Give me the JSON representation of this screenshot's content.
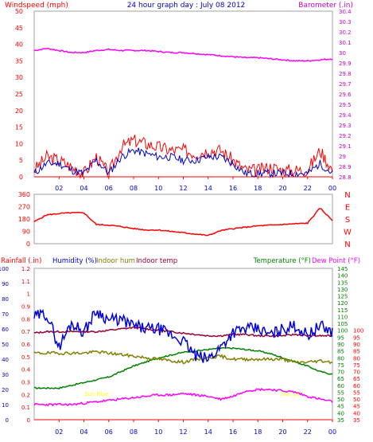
{
  "title": "24 hour graph day : July 08 2012",
  "colors": {
    "wind": "#ff0000",
    "gust": "#0000cc",
    "barometer": "#ff00ff",
    "winddir": "#ff0000",
    "rain": "#ff0000",
    "humidity": "#0000dd",
    "indoor_hum": "#808000",
    "indoor_temp": "#990033",
    "temperature": "#008000",
    "dewpoint": "#ff00ff",
    "frame": "#a0a0a0",
    "axis_blue": "#0000cc",
    "axis_green": "#008000",
    "axis_red": "#ff0000",
    "axis_magenta": "#cc00cc",
    "annotation": "#ffff00"
  },
  "x_tick_labels": [
    "02",
    "04",
    "06",
    "08",
    "10",
    "12",
    "14",
    "16",
    "18",
    "20",
    "22",
    "00"
  ],
  "chart_data": [
    {
      "type": "line",
      "title": "Windspeed / Barometer",
      "ylabel_left": "Windspeed (mph)",
      "ylabel_right": "Barometer (.in)",
      "ylim": [
        0,
        50
      ],
      "yticks": [
        "0",
        "5",
        "10",
        "15",
        "20",
        "25",
        "30",
        "35",
        "40",
        "45",
        "50"
      ],
      "y2lim": [
        28.8,
        30.4
      ],
      "y2ticks": [
        "28.8",
        "28.9",
        "29",
        "29.1",
        "29.2",
        "29.3",
        "29.4",
        "29.5",
        "29.6",
        "29.7",
        "29.8",
        "29.9",
        "30",
        "30.1",
        "30.2",
        "30.3",
        "30.4"
      ],
      "x": [
        0,
        1,
        2,
        3,
        4,
        5,
        6,
        7,
        8,
        9,
        10,
        11,
        12,
        13,
        14,
        15,
        16,
        17,
        18,
        19,
        20,
        21,
        22,
        23,
        24
      ],
      "series": [
        {
          "name": "Windspeed",
          "values": [
            2,
            6,
            5,
            3,
            1,
            6,
            1,
            9,
            11,
            10,
            9,
            8,
            8,
            7,
            8,
            8,
            5,
            2,
            2,
            3,
            2,
            2,
            2,
            8,
            2
          ]
        },
        {
          "name": "Gust",
          "values": [
            1,
            4,
            4,
            2,
            1,
            5,
            1,
            6,
            8,
            7,
            6,
            6,
            5,
            5,
            6,
            6,
            4,
            1,
            1,
            1,
            1,
            1,
            1,
            4,
            1
          ]
        },
        {
          "name": "Barometer",
          "values": [
            30.02,
            30.04,
            30.02,
            30.0,
            30.0,
            30.02,
            30.03,
            30.02,
            30.02,
            30.02,
            30.01,
            30.0,
            30.0,
            29.99,
            29.98,
            29.97,
            29.96,
            29.95,
            29.95,
            29.94,
            29.93,
            29.92,
            29.92,
            29.93,
            29.94
          ]
        }
      ]
    },
    {
      "type": "line",
      "title": "Wind direction",
      "ylim": [
        0,
        360
      ],
      "yticks": [
        "0",
        "90",
        "180",
        "270",
        "360"
      ],
      "y2ticks": [
        "N",
        "W",
        "S",
        "E",
        "N"
      ],
      "x": [
        0,
        1,
        2,
        3,
        4,
        5,
        6,
        7,
        8,
        9,
        10,
        11,
        12,
        13,
        14,
        15,
        16,
        17,
        18,
        19,
        20,
        21,
        22,
        23,
        24
      ],
      "series": [
        {
          "name": "Wind direction",
          "values": [
            160,
            210,
            220,
            225,
            225,
            140,
            135,
            125,
            110,
            100,
            100,
            90,
            80,
            70,
            60,
            95,
            110,
            120,
            130,
            135,
            140,
            145,
            150,
            260,
            170
          ]
        }
      ]
    },
    {
      "type": "line",
      "title": "Rainfall / Humidity / Temperature",
      "legend": [
        "Rainfall (.in)",
        "Humidity (%)",
        "Indoor hum",
        "Indoor temp",
        "Temperature (°F)",
        "Dew Point (°F)"
      ],
      "ylim_rain": [
        0,
        1.2
      ],
      "yticks_rain": [
        "0",
        "0.1",
        "0.2",
        "0.3",
        "0.4",
        "0.5",
        "0.6",
        "0.7",
        "0.8",
        "0.9",
        "1",
        "1.1",
        "1.2"
      ],
      "ylim_humidity": [
        0,
        100
      ],
      "yticks_humidity": [
        "0",
        "10",
        "20",
        "30",
        "40",
        "50",
        "60",
        "70",
        "80",
        "90",
        "100"
      ],
      "ylim_temperature": [
        35,
        145
      ],
      "yticks_temperature": [
        "35",
        "40",
        "45",
        "50",
        "55",
        "60",
        "65",
        "70",
        "75",
        "80",
        "85",
        "90",
        "95",
        "100",
        "105",
        "110",
        "115",
        "120",
        "125",
        "130",
        "135",
        "140",
        "145"
      ],
      "yticks_dewpoint": [
        "35",
        "40",
        "45",
        "50",
        "55",
        "60",
        "65",
        "70",
        "75",
        "80",
        "85",
        "90",
        "95",
        "100"
      ],
      "annotations": [
        "Sun Rise",
        "Sun Set"
      ],
      "x": [
        0,
        1,
        2,
        3,
        4,
        5,
        6,
        7,
        8,
        9,
        10,
        11,
        12,
        13,
        14,
        15,
        16,
        17,
        18,
        19,
        20,
        21,
        22,
        23,
        24
      ],
      "series": [
        {
          "name": "Rainfall (.in)",
          "values": [
            0,
            0,
            0,
            0,
            0,
            0,
            0,
            0,
            0,
            0,
            0,
            0,
            0,
            0,
            0,
            0,
            0,
            0,
            0,
            0,
            0,
            0,
            0,
            0,
            0
          ]
        },
        {
          "name": "Humidity (%)",
          "values": [
            68,
            70,
            48,
            64,
            58,
            72,
            66,
            66,
            62,
            60,
            60,
            56,
            52,
            42,
            40,
            48,
            58,
            60,
            60,
            56,
            60,
            62,
            56,
            62,
            58
          ]
        },
        {
          "name": "Indoor hum",
          "values": [
            44,
            44,
            44,
            44,
            44,
            45,
            44,
            43,
            42,
            41,
            40,
            39,
            38,
            40,
            41,
            42,
            40,
            40,
            40,
            40,
            40,
            38,
            38,
            39,
            38
          ]
        },
        {
          "name": "Indoor temp",
          "values": [
            98,
            99,
            99,
            99,
            99,
            99,
            100,
            101,
            102,
            101,
            100,
            99,
            98,
            97,
            96,
            96,
            97,
            97,
            96,
            96,
            96,
            97,
            96,
            96,
            96
          ]
        },
        {
          "name": "Temperature (°F)",
          "values": [
            58,
            58,
            58,
            60,
            62,
            64,
            66,
            70,
            74,
            77,
            80,
            82,
            84,
            85,
            86,
            87,
            87,
            86,
            85,
            83,
            80,
            77,
            74,
            70,
            68
          ]
        },
        {
          "name": "Dew Point (°F)",
          "values": [
            46,
            46,
            46,
            46,
            47,
            48,
            49,
            50,
            51,
            52,
            53,
            53,
            54,
            53,
            52,
            50,
            52,
            56,
            57,
            57,
            56,
            55,
            52,
            50,
            48
          ]
        }
      ]
    }
  ]
}
